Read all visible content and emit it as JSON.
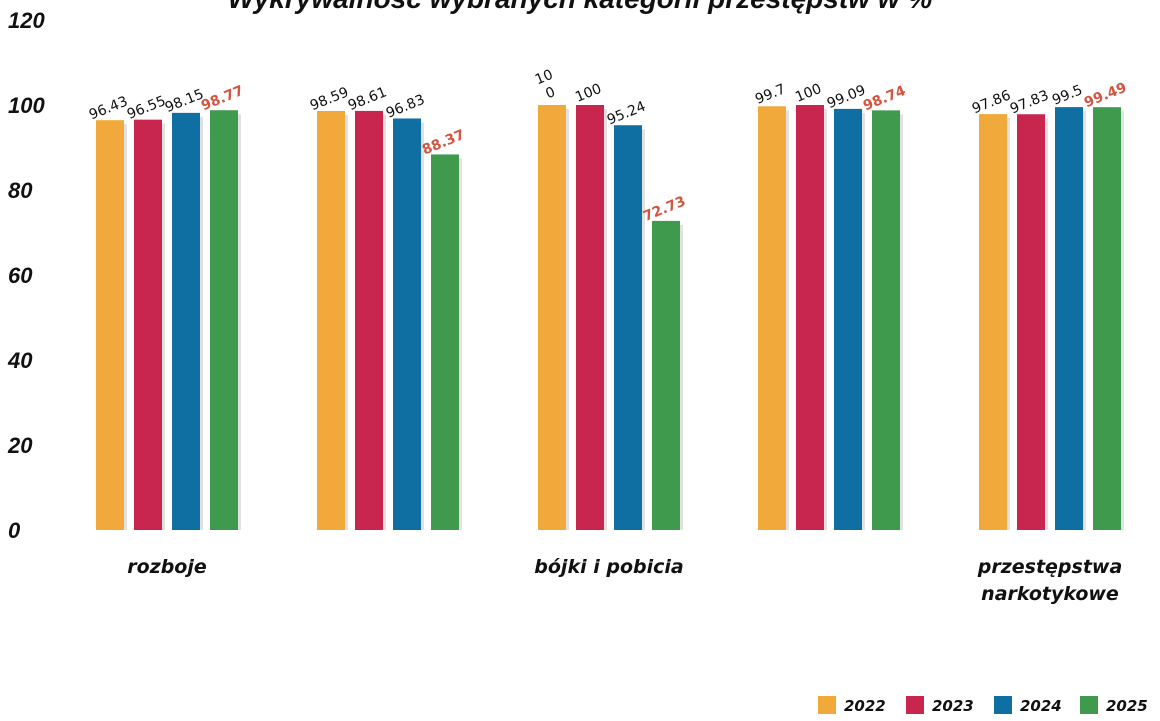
{
  "chart_data": {
    "type": "bar",
    "title": "Wykrywalność wybranych kategorii przestępstw w %",
    "categories": [
      "rozboje",
      "",
      "bójki i pobicia",
      "",
      "przestępstwa narkotykowe"
    ],
    "category_lines": [
      [
        "rozboje"
      ],
      [],
      [
        "bójki i pobicia"
      ],
      [],
      [
        "przestępstwa",
        "narkotykowe"
      ]
    ],
    "series": [
      {
        "name": "2022",
        "color": "#f2a93b",
        "values": [
          96.43,
          98.59,
          100,
          99.7,
          97.86
        ]
      },
      {
        "name": "2023",
        "color": "#c8264f",
        "values": [
          96.55,
          98.61,
          100,
          100,
          97.83
        ]
      },
      {
        "name": "2024",
        "color": "#0f6fa3",
        "values": [
          98.15,
          96.83,
          95.24,
          99.09,
          99.5
        ]
      },
      {
        "name": "2025",
        "color": "#3f9a4e",
        "values": [
          98.77,
          88.37,
          72.73,
          98.74,
          99.49
        ]
      }
    ],
    "data_labels": [
      [
        "96.43",
        "96.55",
        "98.15",
        "98.77"
      ],
      [
        "98.59",
        "98.61",
        "96.83",
        "88.37"
      ],
      [
        "10\n0",
        "100",
        "95.24",
        "72.73"
      ],
      [
        "99.7",
        "100",
        "99.09",
        "98.74"
      ],
      [
        "97.86",
        "97.83",
        "99.5",
        "99.49"
      ]
    ],
    "highlight_color": "#d4553f",
    "y_ticks": [
      "0",
      "20",
      "40",
      "60",
      "80",
      "100",
      "120"
    ],
    "ylim": [
      0,
      120
    ],
    "legend": {
      "position": "bottom-right"
    },
    "grid": false
  }
}
